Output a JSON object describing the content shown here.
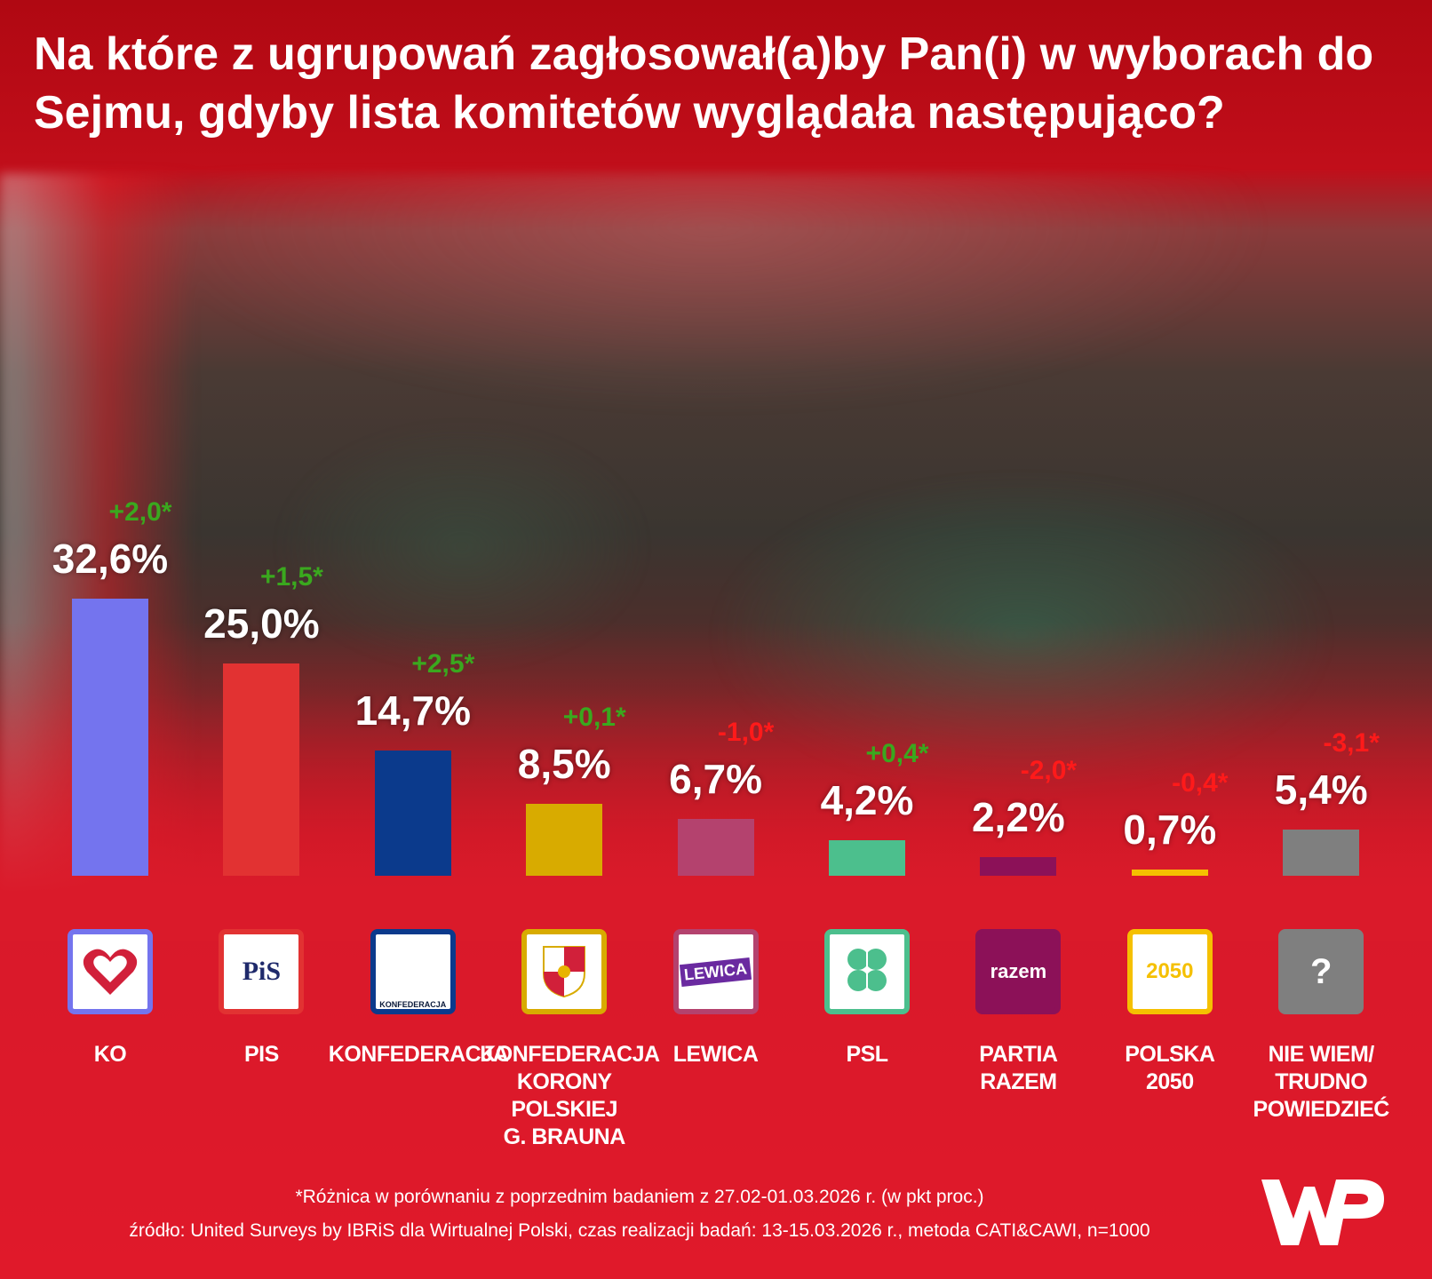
{
  "chart_data": {
    "type": "bar",
    "title": "Na które z ugrupowań zagłosował(a)by Pan(i) w wyborach do Sejmu, gdyby lista komitetów wyglądała następująco?",
    "categories": [
      "KO",
      "PIS",
      "KONFEDERACJA",
      "KONFEDERACJA\nKORONY\nPOLSKIEJ\nG. BRAUNA",
      "LEWICA",
      "PSL",
      "PARTIA\nRAZEM",
      "POLSKA\n2050",
      "NIE WIEM/\nTRUDNO\nPOWIEDZIEĆ"
    ],
    "values": [
      32.6,
      25.0,
      14.7,
      8.5,
      6.7,
      4.2,
      2.2,
      0.7,
      5.4
    ],
    "value_labels": [
      "32,6%",
      "25,0%",
      "14,7%",
      "8,5%",
      "6,7%",
      "4,2%",
      "2,2%",
      "0,7%",
      "5,4%"
    ],
    "changes": [
      2.0,
      1.5,
      2.5,
      0.1,
      -1.0,
      0.4,
      -2.0,
      -0.4,
      -3.1
    ],
    "change_labels": [
      "+2,0*",
      "+1,5*",
      "+2,5*",
      "+0,1*",
      "-1,0*",
      "+0,4*",
      "-2,0*",
      "-0,4*",
      "-3,1*"
    ],
    "colors": [
      "#7474ee",
      "#e23232",
      "#0b3a8c",
      "#d8ab00",
      "#b4426e",
      "#4cbf8d",
      "#8c1158",
      "#f5c000",
      "#7f7f7f"
    ],
    "logos": [
      "heart-icon",
      "pis-logo",
      "konfederacja-logo",
      "crown-shield-logo",
      "lewica-logo",
      "clover-icon",
      "razem-logo",
      "polska-2050-logo",
      "question-mark-icon"
    ],
    "logo_text": [
      "",
      "PiS",
      "KONFEDERACJA",
      "",
      "LEWICA",
      "",
      "razem",
      "2050",
      "?"
    ],
    "positive_color": "#3aa81e",
    "negative_color": "#ff1a1a",
    "ylim": [
      0,
      35
    ],
    "grid": false
  },
  "footnote": "*Różnica w porównaniu z poprzednim badaniem z 27.02-01.03.2026 r. (w pkt proc.)",
  "source": "źródło: United Surveys by IBRiS dla Wirtualnej Polski, czas realizacji badań: 13-15.03.2026 r., metoda CATI&CAWI, n=1000",
  "brand_logo": "WP"
}
